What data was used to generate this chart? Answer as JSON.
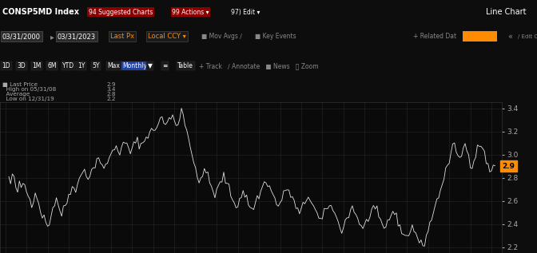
{
  "title_bar": "CONSP5MD Index",
  "last_price": 2.9,
  "high_date": "05/31/08",
  "high_val": 3.4,
  "average": 2.8,
  "low_date": "12/31/19",
  "low_val": 2.2,
  "ylim": [
    2.15,
    3.45
  ],
  "yticks": [
    2.2,
    2.4,
    2.6,
    2.8,
    3.0,
    3.2,
    3.4
  ],
  "plot_bg": "#0a0a0a",
  "line_color": "#e0e0e0",
  "grid_color": "#282828",
  "profile": [
    2.8,
    2.75,
    2.82,
    2.78,
    2.72,
    2.68,
    2.74,
    2.7,
    2.76,
    2.73,
    2.69,
    2.65,
    2.61,
    2.58,
    2.62,
    2.68,
    2.64,
    2.57,
    2.52,
    2.48,
    2.45,
    2.42,
    2.38,
    2.42,
    2.48,
    2.54,
    2.58,
    2.62,
    2.58,
    2.52,
    2.48,
    2.52,
    2.56,
    2.6,
    2.64,
    2.68,
    2.72,
    2.75,
    2.7,
    2.74,
    2.78,
    2.82,
    2.85,
    2.88,
    2.84,
    2.8,
    2.82,
    2.85,
    2.88,
    2.92,
    2.96,
    2.98,
    2.94,
    2.9,
    2.86,
    2.9,
    2.94,
    2.98,
    3.0,
    3.02,
    3.05,
    3.08,
    3.05,
    3.02,
    3.05,
    3.08,
    3.1,
    3.08,
    3.05,
    3.02,
    3.05,
    3.08,
    3.1,
    3.12,
    3.1,
    3.08,
    3.1,
    3.12,
    3.15,
    3.18,
    3.2,
    3.22,
    3.18,
    3.22,
    3.25,
    3.28,
    3.3,
    3.32,
    3.28,
    3.25,
    3.28,
    3.3,
    3.32,
    3.35,
    3.3,
    3.28,
    3.25,
    3.3,
    3.4,
    3.35,
    3.28,
    3.22,
    3.15,
    3.08,
    3.0,
    2.92,
    2.85,
    2.8,
    2.75,
    2.8,
    2.85,
    2.88,
    2.84,
    2.8,
    2.76,
    2.72,
    2.68,
    2.65,
    2.68,
    2.72,
    2.75,
    2.78,
    2.82,
    2.78,
    2.74,
    2.7,
    2.66,
    2.62,
    2.58,
    2.55,
    2.58,
    2.62,
    2.65,
    2.68,
    2.65,
    2.62,
    2.58,
    2.55,
    2.52,
    2.55,
    2.58,
    2.62,
    2.65,
    2.68,
    2.72,
    2.75,
    2.78,
    2.75,
    2.72,
    2.68,
    2.65,
    2.62,
    2.58,
    2.55,
    2.58,
    2.62,
    2.65,
    2.68,
    2.72,
    2.68,
    2.65,
    2.62,
    2.58,
    2.55,
    2.52,
    2.48,
    2.52,
    2.55,
    2.58,
    2.62,
    2.65,
    2.62,
    2.58,
    2.55,
    2.52,
    2.48,
    2.45,
    2.42,
    2.45,
    2.48,
    2.52,
    2.55,
    2.58,
    2.55,
    2.52,
    2.48,
    2.45,
    2.42,
    2.38,
    2.35,
    2.38,
    2.42,
    2.45,
    2.48,
    2.52,
    2.55,
    2.52,
    2.48,
    2.45,
    2.42,
    2.38,
    2.35,
    2.38,
    2.42,
    2.45,
    2.48,
    2.52,
    2.55,
    2.52,
    2.48,
    2.45,
    2.42,
    2.38,
    2.35,
    2.38,
    2.42,
    2.45,
    2.48,
    2.52,
    2.48,
    2.45,
    2.42,
    2.38,
    2.35,
    2.32,
    2.28,
    2.3,
    2.32,
    2.35,
    2.38,
    2.35,
    2.32,
    2.28,
    2.25,
    2.22,
    2.2,
    2.25,
    2.3,
    2.35,
    2.4,
    2.45,
    2.5,
    2.55,
    2.6,
    2.65,
    2.7,
    2.75,
    2.8,
    2.85,
    2.9,
    2.95,
    3.0,
    3.05,
    3.08,
    3.05,
    3.0,
    2.95,
    3.0,
    3.05,
    3.08,
    3.05,
    3.0,
    2.95,
    2.9,
    2.95,
    3.0,
    3.05,
    3.1,
    3.08,
    3.05,
    3.0,
    2.95,
    2.9,
    2.85,
    2.88,
    2.9,
    2.9
  ]
}
